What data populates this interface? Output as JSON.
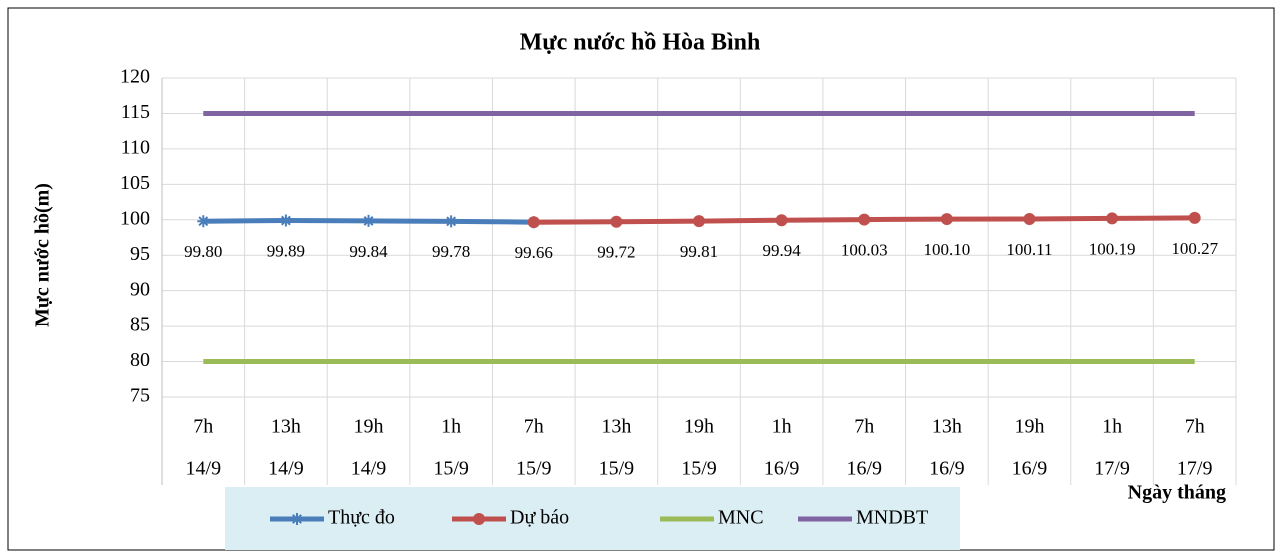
{
  "chart_data": {
    "type": "line",
    "title": "Mực nước hồ Hòa Bình",
    "y_label": "Mực nước hồ(m)",
    "x_label": "Ngày tháng",
    "categories": [
      [
        "7h",
        "14/9"
      ],
      [
        "13h",
        "14/9"
      ],
      [
        "19h",
        "14/9"
      ],
      [
        "1h",
        "15/9"
      ],
      [
        "7h",
        "15/9"
      ],
      [
        "13h",
        "15/9"
      ],
      [
        "19h",
        "15/9"
      ],
      [
        "1h",
        "16/9"
      ],
      [
        "7h",
        "16/9"
      ],
      [
        "13h",
        "16/9"
      ],
      [
        "19h",
        "16/9"
      ],
      [
        "1h",
        "17/9"
      ],
      [
        "7h",
        "17/9"
      ]
    ],
    "series": [
      {
        "name": "Thực đo",
        "color": "#4a7ebb",
        "marker": "star",
        "values": [
          99.8,
          99.89,
          99.84,
          99.78,
          99.66,
          null,
          null,
          null,
          null,
          null,
          null,
          null,
          null
        ],
        "value_labels": [
          "99.80",
          "99.89",
          "99.84",
          "99.78",
          "99.66",
          null,
          null,
          null,
          null,
          null,
          null,
          null,
          null
        ]
      },
      {
        "name": "Dự báo",
        "color": "#c0504d",
        "marker": "circle",
        "values": [
          null,
          null,
          null,
          null,
          99.66,
          99.72,
          99.81,
          99.94,
          100.03,
          100.1,
          100.11,
          100.19,
          100.27
        ],
        "value_labels": [
          null,
          null,
          null,
          null,
          null,
          "99.72",
          "99.81",
          "99.94",
          "100.03",
          "100.10",
          "100.11",
          "100.19",
          "100.27"
        ]
      },
      {
        "name": "MNC",
        "color": "#9bbb59",
        "marker": "none",
        "values": [
          80,
          80,
          80,
          80,
          80,
          80,
          80,
          80,
          80,
          80,
          80,
          80,
          80
        ]
      },
      {
        "name": "MNDBT",
        "color": "#8064a2",
        "marker": "none",
        "values": [
          115,
          115,
          115,
          115,
          115,
          115,
          115,
          115,
          115,
          115,
          115,
          115,
          115
        ]
      }
    ],
    "ylim": [
      75,
      120
    ],
    "yticks": [
      75,
      80,
      85,
      90,
      95,
      100,
      105,
      110,
      115,
      120
    ],
    "grid": true
  }
}
